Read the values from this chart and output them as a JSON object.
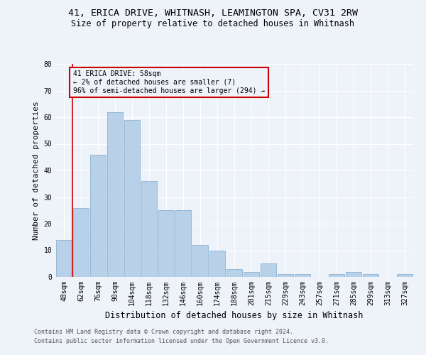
{
  "title1": "41, ERICA DRIVE, WHITNASH, LEAMINGTON SPA, CV31 2RW",
  "title2": "Size of property relative to detached houses in Whitnash",
  "xlabel": "Distribution of detached houses by size in Whitnash",
  "ylabel": "Number of detached properties",
  "bar_color": "#b8d0e8",
  "bar_edge_color": "#7aaad0",
  "annotation_line_color": "#cc0000",
  "categories": [
    "48sqm",
    "62sqm",
    "76sqm",
    "90sqm",
    "104sqm",
    "118sqm",
    "132sqm",
    "146sqm",
    "160sqm",
    "174sqm",
    "188sqm",
    "201sqm",
    "215sqm",
    "229sqm",
    "243sqm",
    "257sqm",
    "271sqm",
    "285sqm",
    "299sqm",
    "313sqm",
    "327sqm"
  ],
  "values": [
    14,
    26,
    46,
    62,
    59,
    36,
    25,
    25,
    12,
    10,
    3,
    2,
    5,
    1,
    1,
    0,
    1,
    2,
    1,
    0,
    1
  ],
  "ylim": [
    0,
    80
  ],
  "yticks": [
    0,
    10,
    20,
    30,
    40,
    50,
    60,
    70,
    80
  ],
  "annotation_text_line1": "41 ERICA DRIVE: 58sqm",
  "annotation_text_line2": "← 2% of detached houses are smaller (7)",
  "annotation_text_line3": "96% of semi-detached houses are larger (294) →",
  "footer1": "Contains HM Land Registry data © Crown copyright and database right 2024.",
  "footer2": "Contains public sector information licensed under the Open Government Licence v3.0.",
  "background_color": "#eef2f9",
  "grid_color": "#ffffff",
  "title1_fontsize": 9.5,
  "title2_fontsize": 8.5,
  "axis_label_fontsize": 8,
  "tick_fontsize": 7,
  "footer_fontsize": 6
}
